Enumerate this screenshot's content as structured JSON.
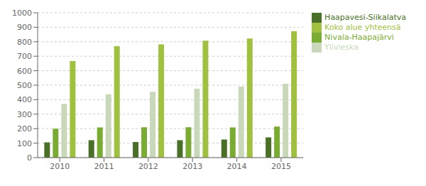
{
  "chart_data": {
    "type": "bar",
    "categories": [
      "2010",
      "2011",
      "2012",
      "2013",
      "2014",
      "2015"
    ],
    "series": [
      {
        "name": "Haapavesi-Siikalatva",
        "color": "#4a7028",
        "values": [
          105,
          120,
          108,
          120,
          125,
          140
        ]
      },
      {
        "name": "Nivala-Haapajärvi",
        "color": "#7aab32",
        "values": [
          200,
          208,
          210,
          210,
          208,
          215
        ]
      },
      {
        "name": "Ylivieska",
        "color": "#c8d8b8",
        "values": [
          370,
          437,
          455,
          475,
          490,
          510
        ]
      },
      {
        "name": "Koko alue yhteensä",
        "color": "#a0c040",
        "values": [
          667,
          770,
          782,
          808,
          822,
          873
        ]
      }
    ],
    "ylim": [
      0,
      1000
    ],
    "yticks": [
      0,
      100,
      200,
      300,
      400,
      500,
      600,
      700,
      800,
      900,
      1000
    ],
    "grid": true,
    "legend": "upper right"
  }
}
